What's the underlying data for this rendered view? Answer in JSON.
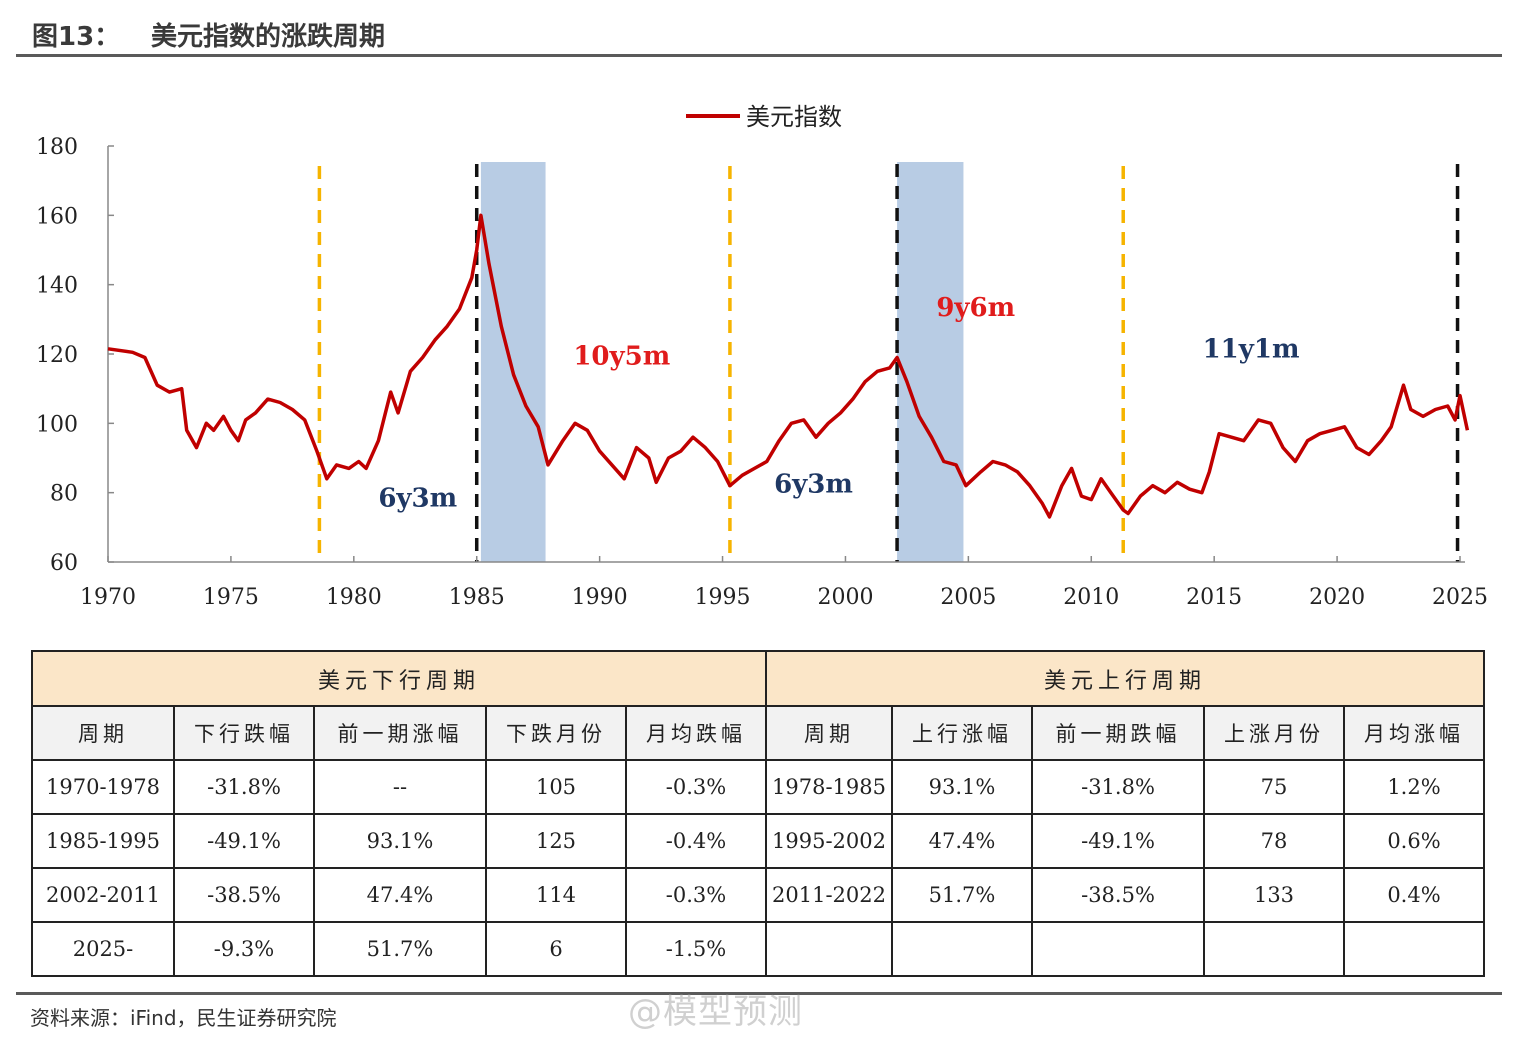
{
  "header": {
    "figure_number": "图13：",
    "title": "美元指数的涨跌周期"
  },
  "chart_data": {
    "type": "line",
    "series": [
      {
        "name": "美元指数",
        "color": "#c00000"
      }
    ],
    "legend": {
      "label": "美元指数",
      "placement": "top-center"
    },
    "x_range": [
      1970,
      2025.3
    ],
    "x_ticks": [
      "1970",
      "1975",
      "1980",
      "1985",
      "1990",
      "1995",
      "2000",
      "2005",
      "2010",
      "2015",
      "2020",
      "2025"
    ],
    "ylim": [
      60,
      180
    ],
    "y_ticks": [
      "60",
      "80",
      "100",
      "120",
      "140",
      "160",
      "180"
    ],
    "points": [
      [
        1970.0,
        121.5
      ],
      [
        1971.0,
        120.5
      ],
      [
        1971.5,
        119
      ],
      [
        1972.0,
        111
      ],
      [
        1972.5,
        109
      ],
      [
        1973.0,
        110
      ],
      [
        1973.2,
        98
      ],
      [
        1973.6,
        93
      ],
      [
        1974.0,
        100
      ],
      [
        1974.3,
        98
      ],
      [
        1974.7,
        102
      ],
      [
        1975.0,
        98
      ],
      [
        1975.3,
        95
      ],
      [
        1975.6,
        101
      ],
      [
        1976.0,
        103
      ],
      [
        1976.5,
        107
      ],
      [
        1977.0,
        106
      ],
      [
        1977.5,
        104
      ],
      [
        1978.0,
        101
      ],
      [
        1978.5,
        92
      ],
      [
        1978.9,
        84
      ],
      [
        1979.3,
        88
      ],
      [
        1979.8,
        87
      ],
      [
        1980.2,
        89
      ],
      [
        1980.5,
        87
      ],
      [
        1981.0,
        95
      ],
      [
        1981.5,
        109
      ],
      [
        1981.8,
        103
      ],
      [
        1982.3,
        115
      ],
      [
        1982.8,
        119
      ],
      [
        1983.3,
        124
      ],
      [
        1983.8,
        128
      ],
      [
        1984.3,
        133
      ],
      [
        1984.8,
        142
      ],
      [
        1985.0,
        150
      ],
      [
        1985.17,
        160
      ],
      [
        1985.5,
        146
      ],
      [
        1986.0,
        128
      ],
      [
        1986.5,
        114
      ],
      [
        1987.0,
        105
      ],
      [
        1987.5,
        99
      ],
      [
        1987.9,
        88
      ],
      [
        1988.5,
        95
      ],
      [
        1989.0,
        100
      ],
      [
        1989.5,
        98
      ],
      [
        1990.0,
        92
      ],
      [
        1990.5,
        88
      ],
      [
        1991.0,
        84
      ],
      [
        1991.5,
        93
      ],
      [
        1992.0,
        90
      ],
      [
        1992.3,
        83
      ],
      [
        1992.8,
        90
      ],
      [
        1993.3,
        92
      ],
      [
        1993.8,
        96
      ],
      [
        1994.3,
        93
      ],
      [
        1994.8,
        89
      ],
      [
        1995.3,
        82
      ],
      [
        1995.8,
        85
      ],
      [
        1996.3,
        87
      ],
      [
        1996.8,
        89
      ],
      [
        1997.3,
        95
      ],
      [
        1997.8,
        100
      ],
      [
        1998.3,
        101
      ],
      [
        1998.8,
        96
      ],
      [
        1999.3,
        100
      ],
      [
        1999.8,
        103
      ],
      [
        2000.3,
        107
      ],
      [
        2000.8,
        112
      ],
      [
        2001.3,
        115
      ],
      [
        2001.8,
        116
      ],
      [
        2002.1,
        119
      ],
      [
        2002.5,
        112
      ],
      [
        2003.0,
        102
      ],
      [
        2003.5,
        96
      ],
      [
        2004.0,
        89
      ],
      [
        2004.5,
        88
      ],
      [
        2004.9,
        82
      ],
      [
        2005.5,
        86
      ],
      [
        2006.0,
        89
      ],
      [
        2006.5,
        88
      ],
      [
        2007.0,
        86
      ],
      [
        2007.5,
        82
      ],
      [
        2008.0,
        77
      ],
      [
        2008.3,
        73
      ],
      [
        2008.8,
        82
      ],
      [
        2009.2,
        87
      ],
      [
        2009.6,
        79
      ],
      [
        2010.0,
        78
      ],
      [
        2010.4,
        84
      ],
      [
        2010.8,
        80
      ],
      [
        2011.3,
        75
      ],
      [
        2011.5,
        74
      ],
      [
        2012.0,
        79
      ],
      [
        2012.5,
        82
      ],
      [
        2013.0,
        80
      ],
      [
        2013.5,
        83
      ],
      [
        2014.0,
        81
      ],
      [
        2014.5,
        80
      ],
      [
        2014.8,
        86
      ],
      [
        2015.2,
        97
      ],
      [
        2015.7,
        96
      ],
      [
        2016.2,
        95
      ],
      [
        2016.8,
        101
      ],
      [
        2017.3,
        100
      ],
      [
        2017.8,
        93
      ],
      [
        2018.3,
        89
      ],
      [
        2018.8,
        95
      ],
      [
        2019.3,
        97
      ],
      [
        2019.8,
        98
      ],
      [
        2020.3,
        99
      ],
      [
        2020.8,
        93
      ],
      [
        2021.3,
        91
      ],
      [
        2021.8,
        95
      ],
      [
        2022.2,
        99
      ],
      [
        2022.7,
        111
      ],
      [
        2023.0,
        104
      ],
      [
        2023.5,
        102
      ],
      [
        2024.0,
        104
      ],
      [
        2024.5,
        105
      ],
      [
        2024.8,
        101
      ],
      [
        2025.0,
        108
      ],
      [
        2025.3,
        98
      ]
    ],
    "bands": [
      {
        "from": 1985.17,
        "to": 1987.8,
        "color": "#b8cce4"
      },
      {
        "from": 2002.1,
        "to": 2004.8,
        "color": "#b8cce4"
      }
    ],
    "markers": [
      {
        "x": 1978.6,
        "style": "yellow-dashed"
      },
      {
        "x": 1985.0,
        "style": "black-dashed"
      },
      {
        "x": 1995.3,
        "style": "yellow-dashed"
      },
      {
        "x": 2002.1,
        "style": "black-dashed"
      },
      {
        "x": 2011.3,
        "style": "yellow-dashed"
      },
      {
        "x": 2024.9,
        "style": "black-dashed"
      }
    ],
    "annotations": [
      {
        "text": "6y3m",
        "x": 1982.6,
        "y": 76,
        "color": "#1f3864"
      },
      {
        "text": "10y5m",
        "x": 1990.9,
        "y": 117,
        "color": "#e01c1c"
      },
      {
        "text": "6y3m",
        "x": 1998.7,
        "y": 80,
        "color": "#1f3864"
      },
      {
        "text": "9y6m",
        "x": 2005.3,
        "y": 131,
        "color": "#e01c1c"
      },
      {
        "text": "11y1m",
        "x": 2016.5,
        "y": 119,
        "color": "#1f3864"
      }
    ]
  },
  "table": {
    "group_down": "美元下行周期",
    "group_up": "美元上行周期",
    "columns": [
      "周期",
      "下行跌幅",
      "前一期涨幅",
      "下跌月份",
      "月均跌幅",
      "周期",
      "上行涨幅",
      "前一期跌幅",
      "上涨月份",
      "月均涨幅"
    ],
    "rows": [
      [
        "1970-1978",
        "-31.8%",
        "--",
        "105",
        "-0.3%",
        "1978-1985",
        "93.1%",
        "-31.8%",
        "75",
        "1.2%"
      ],
      [
        "1985-1995",
        "-49.1%",
        "93.1%",
        "125",
        "-0.4%",
        "1995-2002",
        "47.4%",
        "-49.1%",
        "78",
        "0.6%"
      ],
      [
        "2002-2011",
        "-38.5%",
        "47.4%",
        "114",
        "-0.3%",
        "2011-2022",
        "51.7%",
        "-38.5%",
        "133",
        "0.4%"
      ],
      [
        "2025-",
        "-9.3%",
        "51.7%",
        "6",
        "-1.5%",
        "",
        "",
        "",
        "",
        ""
      ]
    ]
  },
  "footer": {
    "source": "资料来源：iFind，民生证券研究院",
    "watermark": "@模型预测"
  }
}
